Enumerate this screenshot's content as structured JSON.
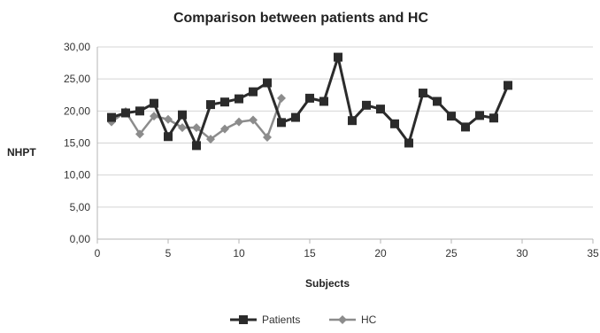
{
  "chart_data": {
    "type": "line",
    "title": "Comparison between patients and HC",
    "xlabel": "Subjects",
    "ylabel": "NHPT",
    "xlim": [
      0,
      35
    ],
    "ylim": [
      0,
      30
    ],
    "x_ticks": [
      "0",
      "5",
      "10",
      "15",
      "20",
      "25",
      "30",
      "35"
    ],
    "y_ticks": [
      "0,00",
      "5,00",
      "10,00",
      "15,00",
      "20,00",
      "25,00",
      "30,00"
    ],
    "grid": "horizontal",
    "legend_position": "bottom",
    "series": [
      {
        "name": "Patients",
        "color": "#2b2b2b",
        "marker": "square",
        "x": [
          1,
          2,
          3,
          4,
          5,
          6,
          7,
          8,
          9,
          10,
          11,
          12,
          13,
          14,
          15,
          16,
          17,
          18,
          19,
          20,
          21,
          22,
          23,
          24,
          25,
          26,
          27,
          28,
          29
        ],
        "values": [
          19.0,
          19.7,
          20.0,
          21.2,
          16.0,
          19.4,
          14.6,
          21.0,
          21.4,
          21.9,
          23.0,
          24.4,
          18.2,
          19.0,
          22.0,
          21.5,
          28.4,
          18.5,
          20.9,
          20.3,
          18.0,
          15.0,
          22.8,
          21.5,
          19.2,
          17.5,
          19.3,
          18.9,
          24.0
        ]
      },
      {
        "name": "HC",
        "color": "#8c8c8c",
        "marker": "diamond",
        "x": [
          1,
          2,
          3,
          4,
          5,
          6,
          7,
          8,
          9,
          10,
          11,
          12,
          13
        ],
        "values": [
          18.3,
          19.9,
          16.4,
          19.2,
          18.7,
          17.4,
          17.4,
          15.6,
          17.2,
          18.3,
          18.6,
          15.9,
          22.0
        ]
      }
    ]
  }
}
